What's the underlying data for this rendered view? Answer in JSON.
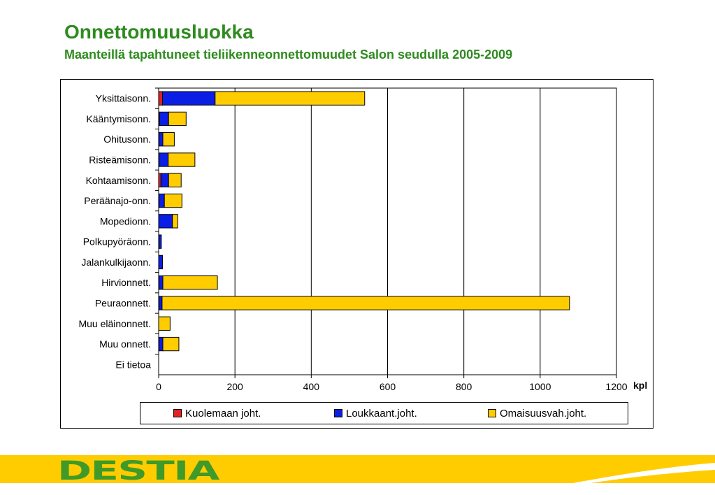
{
  "header": {
    "title": "Onnettomuusluokka",
    "subtitle": "Maanteillä tapahtuneet tieliikenneonnettomuudet Salon seudulla 2005-2009"
  },
  "footer": {
    "logo_text": "DESTIA"
  },
  "colors": {
    "kuolemaan": "#e62020",
    "loukkaant": "#0a1ee6",
    "omaisuus": "#ffcc00",
    "title_green": "#2e8b1f",
    "footer_yellow": "#ffcc00"
  },
  "chart_data": {
    "type": "bar",
    "orientation": "horizontal",
    "stacked": true,
    "categories": [
      "Yksittaisonn.",
      "Kääntymisonn.",
      "Ohitusonn.",
      "Risteämisonn.",
      "Kohtaamisonn.",
      "Peräänajo-onn.",
      "Mopedionn.",
      "Polkupyöräonn.",
      "Jalankulkijaonn.",
      "Hirvionnett.",
      "Peuraonnett.",
      "Muu eläinonnett.",
      "Muu onnett.",
      "Ei tietoa"
    ],
    "series": [
      {
        "name": "Kuolemaan joht.",
        "color": "#e62020",
        "values": [
          10,
          2,
          1,
          1,
          6,
          1,
          0,
          1,
          0,
          1,
          1,
          0,
          1,
          0
        ]
      },
      {
        "name": "Loukkaant.joht.",
        "color": "#0a1ee6",
        "values": [
          138,
          24,
          10,
          24,
          20,
          14,
          36,
          6,
          10,
          10,
          8,
          0,
          10,
          0
        ]
      },
      {
        "name": "Omaisuusvah.joht.",
        "color": "#ffcc00",
        "values": [
          392,
          46,
          30,
          70,
          33,
          46,
          14,
          0,
          0,
          143,
          1068,
          30,
          42,
          0
        ]
      }
    ],
    "xlim": [
      0,
      1200
    ],
    "xticks": [
      "0",
      "200",
      "400",
      "600",
      "800",
      "1000",
      "1200"
    ],
    "xlabel": "kpl",
    "grid": true,
    "legend_position": "bottom"
  }
}
